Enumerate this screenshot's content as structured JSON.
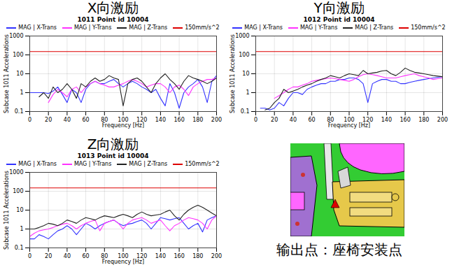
{
  "chart_data": [
    {
      "type": "line",
      "heading": "X向激励",
      "title": "1011 Point id 10004",
      "x_label": "Frequency [Hz]",
      "y_label": "Subcase 1011 Accelerations",
      "log": "y",
      "grid": true,
      "legend": "top",
      "xlim": [
        0,
        200
      ],
      "xticks": [
        0,
        20,
        40,
        60,
        80,
        100,
        120,
        140,
        160,
        180,
        200
      ],
      "ylim": [
        0.1,
        1000
      ],
      "yticks": [
        0.1,
        1,
        10,
        100,
        1000
      ],
      "x": [
        0,
        5,
        10,
        15,
        20,
        25,
        30,
        35,
        40,
        45,
        50,
        55,
        60,
        65,
        70,
        75,
        80,
        85,
        90,
        95,
        100,
        105,
        110,
        115,
        120,
        125,
        130,
        135,
        140,
        145,
        150,
        155,
        160,
        165,
        170,
        175,
        180,
        185,
        190,
        195,
        200
      ],
      "series": [
        {
          "name": "MAG | X-Trans",
          "color": "#3333ff",
          "values": [
            1,
            1,
            1,
            1,
            0.9,
            1.2,
            2,
            0.8,
            0.3,
            1.5,
            1,
            0.3,
            1.5,
            3,
            4,
            3,
            3,
            4,
            5,
            3,
            2,
            3,
            4,
            3,
            2,
            1.5,
            1,
            1.5,
            0.5,
            0.2,
            3,
            1,
            0.15,
            1,
            2,
            3,
            5,
            2,
            0.3,
            4,
            8
          ]
        },
        {
          "name": "MAG | Y-Trans",
          "color": "#ff33ff",
          "values": [
            null,
            null,
            null,
            null,
            0.3,
            0.8,
            1.5,
            1,
            0.6,
            1.5,
            2,
            1,
            2,
            3,
            4,
            3,
            2.5,
            2,
            2,
            2.5,
            3,
            4,
            5,
            4,
            3,
            2,
            2.5,
            3,
            3,
            2,
            1,
            2,
            2.5,
            1.5,
            0.7,
            2,
            3,
            4,
            5,
            5,
            6
          ]
        },
        {
          "name": "MAG | Z-Trans",
          "color": "#222222",
          "values": [
            null,
            null,
            0.6,
            1,
            0.5,
            2,
            1,
            1.5,
            3,
            1.5,
            0.5,
            3,
            2,
            4,
            6,
            4,
            5,
            8,
            6,
            5,
            0.2,
            3,
            5,
            6,
            4,
            2,
            1,
            3,
            6,
            10,
            5,
            3,
            1.5,
            4,
            8,
            6,
            5,
            4,
            3,
            4,
            6
          ]
        },
        {
          "name": "150mm/s^2",
          "color": "#dd0000",
          "values": [
            150,
            150,
            150,
            150,
            150,
            150,
            150,
            150,
            150,
            150,
            150,
            150,
            150,
            150,
            150,
            150,
            150,
            150,
            150,
            150,
            150,
            150,
            150,
            150,
            150,
            150,
            150,
            150,
            150,
            150,
            150,
            150,
            150,
            150,
            150,
            150,
            150,
            150,
            150,
            150,
            150
          ]
        }
      ]
    },
    {
      "type": "line",
      "heading": "Y向激励",
      "title": "1012 Point id 10004",
      "x_label": "Frequency [Hz]",
      "y_label": "Subcase 1011 Accelerations",
      "log": "y",
      "grid": true,
      "legend": "top",
      "xlim": [
        0,
        200
      ],
      "xticks": [
        0,
        20,
        40,
        60,
        80,
        100,
        120,
        140,
        160,
        180,
        200
      ],
      "ylim": [
        0.1,
        1000
      ],
      "yticks": [
        0.1,
        1,
        10,
        100,
        1000
      ],
      "x": [
        0,
        5,
        10,
        15,
        20,
        25,
        30,
        35,
        40,
        45,
        50,
        55,
        60,
        65,
        70,
        75,
        80,
        85,
        90,
        95,
        100,
        105,
        110,
        115,
        120,
        125,
        130,
        135,
        140,
        145,
        150,
        155,
        160,
        165,
        170,
        175,
        180,
        185,
        190,
        195,
        200
      ],
      "series": [
        {
          "name": "MAG | X-Trans",
          "color": "#3333ff",
          "values": [
            null,
            0.15,
            0.15,
            0.12,
            0.15,
            0.3,
            0.2,
            0.5,
            1,
            1,
            0.8,
            1.5,
            2,
            2.5,
            3,
            3,
            4,
            4,
            5,
            5,
            6,
            6,
            5,
            3,
            0.3,
            3,
            4,
            5,
            5,
            4,
            4,
            3,
            3,
            3.5,
            4,
            4.5,
            5,
            5.5,
            6,
            6.5,
            7
          ]
        },
        {
          "name": "MAG | Y-Trans",
          "color": "#ff33ff",
          "values": [
            null,
            null,
            null,
            null,
            0.5,
            0.7,
            1,
            1.5,
            2,
            2,
            2.5,
            3,
            4,
            4.5,
            5,
            5.5,
            6,
            5.5,
            5,
            4.5,
            4,
            5,
            7,
            9,
            10,
            9,
            8,
            7,
            6,
            6,
            6,
            7,
            8,
            9,
            10,
            8,
            7,
            6,
            5,
            5.5,
            6
          ]
        },
        {
          "name": "MAG | Z-Trans",
          "color": "#222222",
          "values": [
            null,
            null,
            0.12,
            0.15,
            0.3,
            0.5,
            1.5,
            1,
            1.2,
            1.5,
            2,
            2.5,
            3,
            4,
            5,
            6,
            8,
            7,
            6,
            8,
            10,
            9,
            8,
            15,
            10,
            11,
            12,
            14,
            15,
            10,
            8,
            12,
            20,
            15,
            12,
            11,
            10,
            9,
            8,
            7.5,
            7
          ]
        },
        {
          "name": "150mm/s^2",
          "color": "#dd0000",
          "values": [
            150,
            150,
            150,
            150,
            150,
            150,
            150,
            150,
            150,
            150,
            150,
            150,
            150,
            150,
            150,
            150,
            150,
            150,
            150,
            150,
            150,
            150,
            150,
            150,
            150,
            150,
            150,
            150,
            150,
            150,
            150,
            150,
            150,
            150,
            150,
            150,
            150,
            150,
            150,
            150,
            150
          ]
        }
      ]
    },
    {
      "type": "line",
      "heading": "Z向激励",
      "title": "1013 Point id 10004",
      "x_label": "Frequency [Hz]",
      "y_label": "Subcase 1011 Accelerations",
      "log": "y",
      "grid": true,
      "legend": "top",
      "xlim": [
        0,
        200
      ],
      "xticks": [
        0,
        20,
        40,
        60,
        80,
        100,
        120,
        140,
        160,
        180,
        200
      ],
      "ylim": [
        0.1,
        1000
      ],
      "yticks": [
        0.1,
        1,
        10,
        100,
        1000
      ],
      "x": [
        0,
        5,
        10,
        15,
        20,
        25,
        30,
        35,
        40,
        45,
        50,
        55,
        60,
        65,
        70,
        75,
        80,
        85,
        90,
        95,
        100,
        105,
        110,
        115,
        120,
        125,
        130,
        135,
        140,
        145,
        150,
        155,
        160,
        165,
        170,
        175,
        180,
        185,
        190,
        195,
        200
      ],
      "series": [
        {
          "name": "MAG | X-Trans",
          "color": "#3333ff",
          "values": [
            0.3,
            0.3,
            0.5,
            0.4,
            0.3,
            0.5,
            0.8,
            1,
            1.5,
            1,
            0.5,
            1,
            2,
            1.5,
            1,
            1.5,
            2,
            2.5,
            3,
            2,
            1.5,
            1.8,
            2,
            2.5,
            3,
            2,
            1,
            2,
            4,
            3.5,
            3,
            3.5,
            4,
            2,
            1,
            1.5,
            2,
            0.7,
            3,
            4,
            5
          ]
        },
        {
          "name": "MAG | Y-Trans",
          "color": "#ff33ff",
          "values": [
            0.4,
            0.6,
            0.8,
            0.9,
            1,
            1.2,
            1.5,
            1.8,
            2,
            1.5,
            1,
            1.5,
            2,
            2.5,
            3,
            0.8,
            2,
            2.5,
            3,
            2,
            1,
            2,
            3,
            3.5,
            4,
            3,
            2,
            2.5,
            3,
            1.5,
            0.8,
            1.5,
            2,
            3,
            4,
            3.5,
            3,
            2,
            1,
            3,
            5
          ]
        },
        {
          "name": "MAG | Z-Trans",
          "color": "#222222",
          "values": [
            1,
            1,
            1.2,
            1.5,
            2,
            1.8,
            1.5,
            2,
            3,
            2.5,
            2,
            3,
            4,
            3.5,
            3,
            4,
            5,
            4.5,
            4,
            5,
            6,
            5,
            4,
            6,
            8,
            6,
            5,
            5.5,
            6,
            8,
            10,
            5,
            3,
            6,
            10,
            14,
            18,
            14,
            10,
            7,
            5
          ]
        },
        {
          "name": "150mm/s^2",
          "color": "#dd0000",
          "values": [
            150,
            150,
            150,
            150,
            150,
            150,
            150,
            150,
            150,
            150,
            150,
            150,
            150,
            150,
            150,
            150,
            150,
            150,
            150,
            150,
            150,
            150,
            150,
            150,
            150,
            150,
            150,
            150,
            150,
            150,
            150,
            150,
            150,
            150,
            150,
            150,
            150,
            150,
            150,
            150,
            150
          ]
        }
      ]
    }
  ],
  "figure": {
    "caption": "输出点：座椅安装点"
  }
}
